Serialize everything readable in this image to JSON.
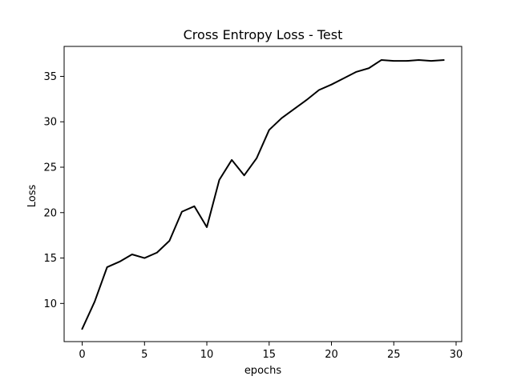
{
  "chart_data": {
    "type": "line",
    "title": "Cross Entropy Loss - Test",
    "xlabel": "epochs",
    "ylabel": "Loss",
    "xlim": [
      -1.45,
      30.45
    ],
    "ylim": [
      5.8,
      38.3
    ],
    "xticks": [
      0,
      5,
      10,
      15,
      20,
      25,
      30
    ],
    "yticks": [
      10,
      15,
      20,
      25,
      30,
      35
    ],
    "grid": false,
    "line_color": "#000000",
    "series": [
      {
        "x": [
          0,
          1,
          2,
          3,
          4,
          5,
          6,
          7,
          8,
          9,
          10,
          11,
          12,
          13,
          14,
          15,
          16,
          17,
          18,
          19,
          20,
          21,
          22,
          23,
          24,
          25,
          26,
          27,
          28,
          29
        ],
        "y": [
          7.2,
          10.2,
          14.0,
          14.6,
          15.4,
          15.0,
          15.6,
          16.9,
          20.1,
          20.7,
          18.4,
          23.6,
          25.8,
          24.1,
          26.0,
          29.1,
          30.4,
          31.4,
          32.4,
          33.5,
          34.1,
          34.8,
          35.5,
          35.9,
          36.8,
          36.7,
          36.7,
          36.8,
          36.7,
          36.8
        ]
      }
    ]
  }
}
